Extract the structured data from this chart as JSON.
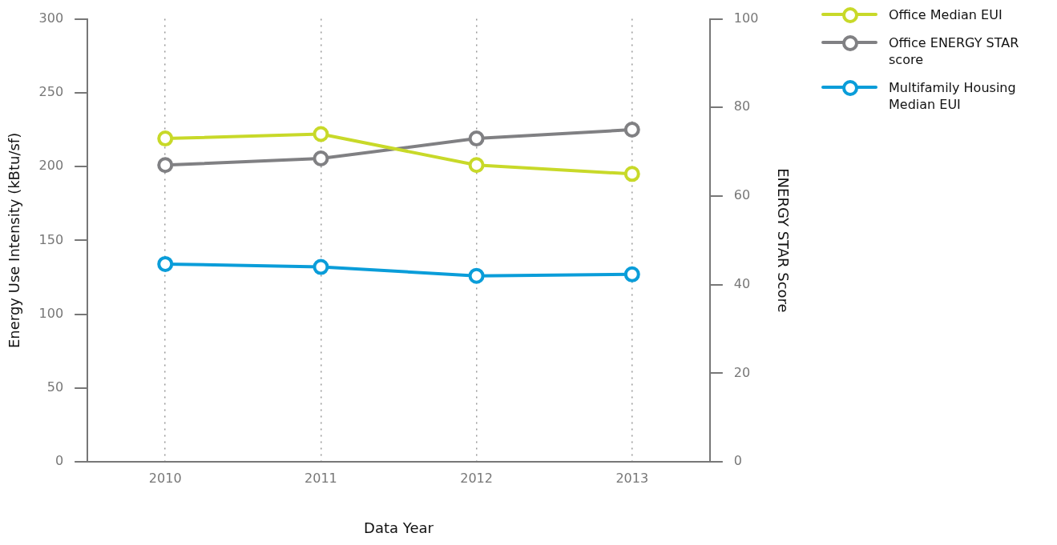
{
  "chart_data": {
    "type": "line",
    "xlabel": "Data Year",
    "ylabel": "Energy Use Intensity (kBtu/sf)",
    "y2label": "ENERGY STAR Score",
    "categories": [
      "2010",
      "2011",
      "2012",
      "2013"
    ],
    "series": [
      {
        "name": "Office Median EUI",
        "color": "#c8d929",
        "values": [
          219,
          222,
          201,
          195
        ]
      },
      {
        "name": "Office ENERGY STAR score",
        "color": "#808083",
        "values": [
          67,
          68.5,
          73,
          75
        ],
        "axis": "y2"
      },
      {
        "name": "Multifamily Housing Median EUI",
        "color": "#0a9dd9",
        "values": [
          134,
          132,
          126,
          127
        ]
      }
    ],
    "ylim": [
      0,
      300
    ],
    "yticks": [
      0,
      50,
      100,
      150,
      200,
      250,
      300
    ],
    "y2lim": [
      0,
      100
    ],
    "y2ticks": [
      0,
      20,
      40,
      60,
      80,
      100
    ],
    "grid": "x",
    "legend": "top right",
    "marker": "circle",
    "line_style": "solid"
  }
}
